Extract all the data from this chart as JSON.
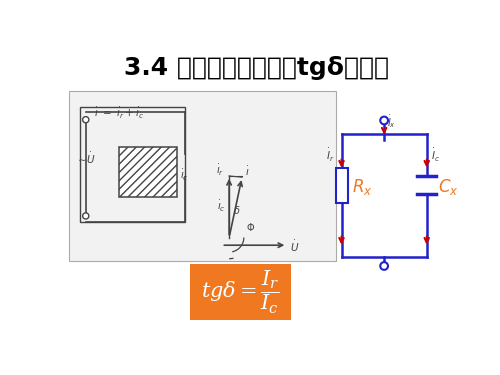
{
  "title": "3.4 介质损失角正切値tgδ的测量",
  "title_fontsize": 18,
  "bg_color": "#ffffff",
  "panel_bg": "#f2f2f2",
  "formula_bg": "#f07820",
  "formula_text_color": "#ffffff",
  "circuit_color": "#2222cc",
  "red_color": "#cc0000",
  "orange_color": "#f07820",
  "gray": "#444444",
  "light_gray": "#f2f2f2"
}
